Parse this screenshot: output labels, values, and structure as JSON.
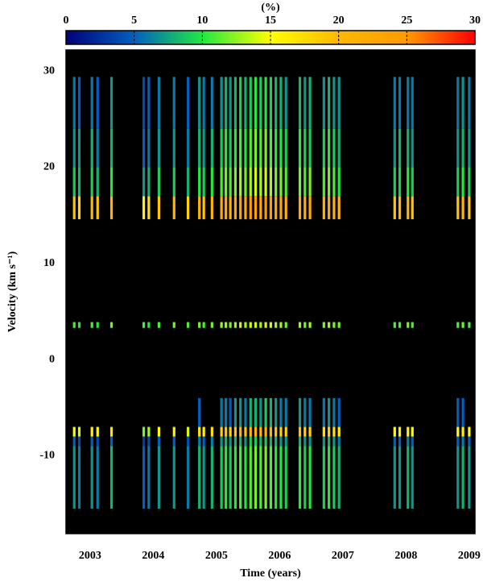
{
  "chart_data": {
    "type": "heatmap",
    "x_label": "Time (years)",
    "y_label": "Velocity (km s⁻¹)",
    "xlim": [
      2002.62,
      2009.09
    ],
    "xticks": [
      2003,
      2004,
      2005,
      2006,
      2007,
      2008,
      2009
    ],
    "ylim": [
      -18.1,
      32.2
    ],
    "yticks": [
      -10,
      0,
      10,
      20,
      30
    ],
    "background": "#000000",
    "colorbar": {
      "title": "(%)",
      "lim": [
        0,
        30
      ],
      "ticks": [
        0,
        5,
        10,
        15,
        20,
        25,
        30
      ],
      "colors": [
        "#00007a",
        "#0060c0",
        "#22e840",
        "#ffff00",
        "#ffb800",
        "#ff9a00",
        "#ff0000"
      ]
    },
    "y_edges": [
      -15.5,
      -9,
      -8,
      -7,
      -4,
      3.3,
      3.9,
      14.6,
      17,
      20,
      24,
      29.4
    ],
    "x": [
      2002.75,
      2002.83,
      2003.03,
      2003.12,
      2003.34,
      2003.85,
      2003.93,
      2004.09,
      2004.33,
      2004.55,
      2004.73,
      2004.8,
      2004.93,
      2005.08,
      2005.15,
      2005.22,
      2005.3,
      2005.38,
      2005.46,
      2005.54,
      2005.62,
      2005.7,
      2005.78,
      2005.86,
      2005.94,
      2006.02,
      2006.1,
      2006.32,
      2006.4,
      2006.48,
      2006.7,
      2006.78,
      2006.86,
      2006.94,
      2007.82,
      2007.9,
      2008.03,
      2008.1,
      2008.82,
      2008.9,
      2009.0
    ],
    "values": [
      [
        7,
        5,
        15,
        null,
        null,
        11,
        null,
        19,
        9,
        7,
        6
      ],
      [
        6,
        4,
        14,
        null,
        null,
        10,
        null,
        18,
        8,
        7,
        5
      ],
      [
        7,
        5,
        16,
        null,
        null,
        11,
        null,
        20,
        9,
        8,
        6
      ],
      [
        6,
        4,
        15,
        null,
        null,
        10,
        null,
        19,
        8,
        6,
        5
      ],
      [
        8,
        5,
        17,
        null,
        null,
        12,
        null,
        21,
        10,
        8,
        7
      ],
      [
        5,
        3,
        12,
        null,
        null,
        11,
        null,
        16,
        7,
        5,
        4
      ],
      [
        6,
        4,
        13,
        null,
        null,
        10,
        null,
        17,
        8,
        6,
        5
      ],
      [
        7,
        5,
        15,
        null,
        null,
        11,
        null,
        19,
        9,
        7,
        6
      ],
      [
        7,
        5,
        16,
        null,
        null,
        12,
        null,
        20,
        9,
        7,
        6
      ],
      [
        6,
        4,
        14,
        null,
        null,
        11,
        null,
        18,
        8,
        6,
        5
      ],
      [
        8,
        6,
        17,
        5,
        null,
        12,
        null,
        21,
        10,
        8,
        7
      ],
      [
        7,
        5,
        16,
        null,
        null,
        11,
        null,
        19,
        9,
        7,
        6
      ],
      [
        8,
        6,
        17,
        null,
        null,
        12,
        null,
        20,
        10,
        8,
        6
      ],
      [
        9,
        7,
        18,
        6,
        null,
        13,
        null,
        22,
        11,
        9,
        7
      ],
      [
        10,
        8,
        19,
        6,
        null,
        13,
        null,
        22,
        12,
        10,
        8
      ],
      [
        9,
        7,
        18,
        5,
        null,
        12,
        null,
        21,
        11,
        9,
        7
      ],
      [
        10,
        8,
        19,
        7,
        null,
        13,
        null,
        23,
        12,
        10,
        8
      ],
      [
        11,
        8,
        20,
        7,
        null,
        14,
        null,
        23,
        13,
        11,
        9
      ],
      [
        10,
        7,
        19,
        6,
        null,
        13,
        null,
        22,
        12,
        10,
        8
      ],
      [
        11,
        9,
        20,
        8,
        null,
        14,
        null,
        24,
        13,
        11,
        9
      ],
      [
        12,
        9,
        21,
        8,
        null,
        14,
        null,
        24,
        14,
        12,
        10
      ],
      [
        11,
        8,
        20,
        7,
        null,
        13,
        null,
        23,
        13,
        11,
        9
      ],
      [
        12,
        9,
        21,
        9,
        null,
        14,
        null,
        25,
        14,
        12,
        10
      ],
      [
        11,
        8,
        20,
        8,
        null,
        14,
        null,
        24,
        13,
        11,
        9
      ],
      [
        10,
        8,
        19,
        7,
        null,
        13,
        null,
        23,
        12,
        10,
        8
      ],
      [
        10,
        7,
        18,
        6,
        null,
        13,
        null,
        22,
        12,
        10,
        8
      ],
      [
        9,
        7,
        18,
        6,
        null,
        12,
        null,
        21,
        11,
        9,
        7
      ],
      [
        10,
        8,
        19,
        7,
        null,
        13,
        null,
        22,
        12,
        10,
        8
      ],
      [
        9,
        7,
        18,
        6,
        null,
        12,
        null,
        21,
        11,
        9,
        7
      ],
      [
        10,
        7,
        18,
        6,
        null,
        13,
        null,
        22,
        12,
        9,
        8
      ],
      [
        9,
        7,
        17,
        6,
        null,
        12,
        null,
        21,
        11,
        9,
        7
      ],
      [
        10,
        8,
        18,
        7,
        null,
        13,
        null,
        22,
        12,
        10,
        8
      ],
      [
        9,
        7,
        17,
        6,
        null,
        12,
        null,
        21,
        11,
        9,
        7
      ],
      [
        8,
        6,
        16,
        5,
        null,
        12,
        null,
        20,
        10,
        8,
        7
      ],
      [
        7,
        5,
        15,
        null,
        null,
        11,
        null,
        19,
        9,
        7,
        6
      ],
      [
        7,
        5,
        16,
        null,
        null,
        11,
        null,
        20,
        9,
        8,
        6
      ],
      [
        8,
        6,
        16,
        null,
        null,
        12,
        null,
        20,
        10,
        8,
        6
      ],
      [
        7,
        5,
        15,
        null,
        null,
        11,
        null,
        19,
        9,
        7,
        6
      ],
      [
        7,
        5,
        15,
        5,
        null,
        11,
        null,
        19,
        9,
        7,
        6
      ],
      [
        8,
        6,
        16,
        5,
        null,
        12,
        null,
        20,
        10,
        8,
        7
      ],
      [
        7,
        5,
        15,
        null,
        null,
        11,
        null,
        19,
        9,
        7,
        6
      ]
    ]
  }
}
